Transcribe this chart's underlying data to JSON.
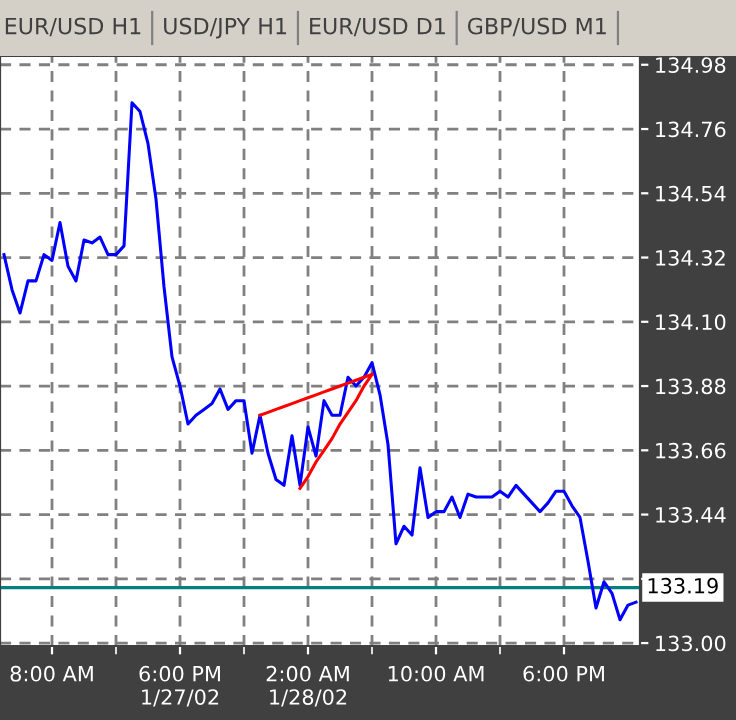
{
  "chart_data": {
    "type": "line",
    "annotations": [
      "EUR/USD H1",
      "USD/JPY H1",
      "EUR/USD D1",
      "GBP/USD M1"
    ],
    "categories": [
      null,
      null,
      null,
      null,
      null,
      null,
      "8:00 AM",
      null,
      null,
      null,
      null,
      null,
      null,
      null,
      null,
      null,
      null,
      null,
      null,
      null,
      null,
      null,
      "6:00 PM\n1/27/02",
      null,
      null,
      null,
      null,
      null,
      null,
      null,
      null,
      null,
      null,
      null,
      null,
      null,
      null,
      null,
      "2:00 AM\n1/28/02",
      null,
      null,
      null,
      null,
      null,
      null,
      null,
      null,
      null,
      null,
      null,
      null,
      null,
      null,
      null,
      "10:00 AM",
      null,
      null,
      null,
      null,
      null,
      null,
      null,
      null,
      null,
      null,
      null,
      null,
      null,
      null,
      null,
      "6:00 PM",
      null,
      null,
      null,
      null,
      null,
      null,
      null,
      null,
      null
    ],
    "series": [
      {
        "color": "#0000ff",
        "values": [
          134.33,
          134.21,
          134.13,
          134.24,
          134.24,
          134.33,
          134.31,
          134.44,
          134.29,
          134.24,
          134.38,
          134.37,
          134.39,
          134.33,
          134.33,
          134.36,
          134.85,
          134.82,
          134.71,
          134.52,
          134.22,
          133.98,
          133.88,
          133.75,
          133.78,
          133.8,
          133.82,
          133.87,
          133.8,
          133.83,
          133.83,
          133.65,
          133.78,
          133.65,
          133.56,
          133.54,
          133.71,
          133.54,
          133.74,
          133.64,
          133.83,
          133.78,
          133.78,
          133.91,
          133.88,
          133.91,
          133.96,
          133.85,
          133.68,
          133.34,
          133.4,
          133.37,
          133.6,
          133.43,
          133.45,
          133.45,
          133.5,
          133.43,
          133.51,
          133.5,
          133.5,
          133.5,
          133.52,
          133.5,
          133.54,
          133.51,
          133.48,
          133.45,
          133.48,
          133.52,
          133.52,
          133.47,
          133.43,
          133.28,
          133.12,
          133.21,
          133.17,
          133.08,
          133.13,
          133.14
        ]
      },
      {
        "color": "#ff0000",
        "values": [
          null,
          null,
          null,
          null,
          null,
          null,
          null,
          null,
          null,
          null,
          null,
          null,
          null,
          null,
          null,
          null,
          null,
          null,
          null,
          null,
          null,
          null,
          null,
          null,
          null,
          null,
          null,
          null,
          null,
          null,
          null,
          null,
          133.78,
          133.79,
          133.8,
          133.81,
          133.82,
          133.83,
          133.84,
          133.85,
          133.86,
          133.87,
          133.88,
          133.89,
          133.9,
          133.91,
          133.92,
          null,
          null,
          null,
          null,
          null,
          null,
          null,
          null,
          null,
          null,
          null,
          null,
          null,
          null,
          null,
          null,
          null,
          null,
          null,
          null,
          null,
          null,
          null,
          null,
          null,
          null,
          null,
          null,
          null,
          null,
          null,
          null,
          null
        ]
      },
      {
        "color": "#ff0000",
        "values": [
          null,
          null,
          null,
          null,
          null,
          null,
          null,
          null,
          null,
          null,
          null,
          null,
          null,
          null,
          null,
          null,
          null,
          null,
          null,
          null,
          null,
          null,
          null,
          null,
          null,
          null,
          null,
          null,
          null,
          null,
          null,
          null,
          null,
          null,
          null,
          null,
          null,
          133.53,
          133.57,
          133.62,
          133.66,
          133.7,
          133.75,
          133.79,
          133.83,
          133.88,
          133.92,
          null,
          null,
          null,
          null,
          null,
          null,
          null,
          null,
          null,
          null,
          null,
          null,
          null,
          null,
          null,
          null,
          null,
          null,
          null,
          null,
          null,
          null,
          null,
          null,
          null,
          null,
          null,
          null,
          null,
          null,
          null,
          null,
          null
        ]
      }
    ],
    "ylim": [
      132.99,
      135.01
    ],
    "yticks": [
      {
        "value": 133.0,
        "label": "133.00"
      },
      {
        "value": 133.22,
        "label": null
      },
      {
        "value": 133.44,
        "label": "133.44"
      },
      {
        "value": 133.66,
        "label": "133.66"
      },
      {
        "value": 133.88,
        "label": "133.88"
      },
      {
        "value": 134.1,
        "label": "134.10"
      },
      {
        "value": 134.32,
        "label": "134.32"
      },
      {
        "value": 134.54,
        "label": "134.54"
      },
      {
        "value": 134.76,
        "label": "134.76"
      },
      {
        "value": 134.98,
        "label": "134.98"
      }
    ],
    "ref_lines": [
      {
        "axis": "y",
        "value": 133.19,
        "label": "133.19",
        "color": "#008080"
      }
    ],
    "grid": true,
    "line_style": "solid"
  }
}
